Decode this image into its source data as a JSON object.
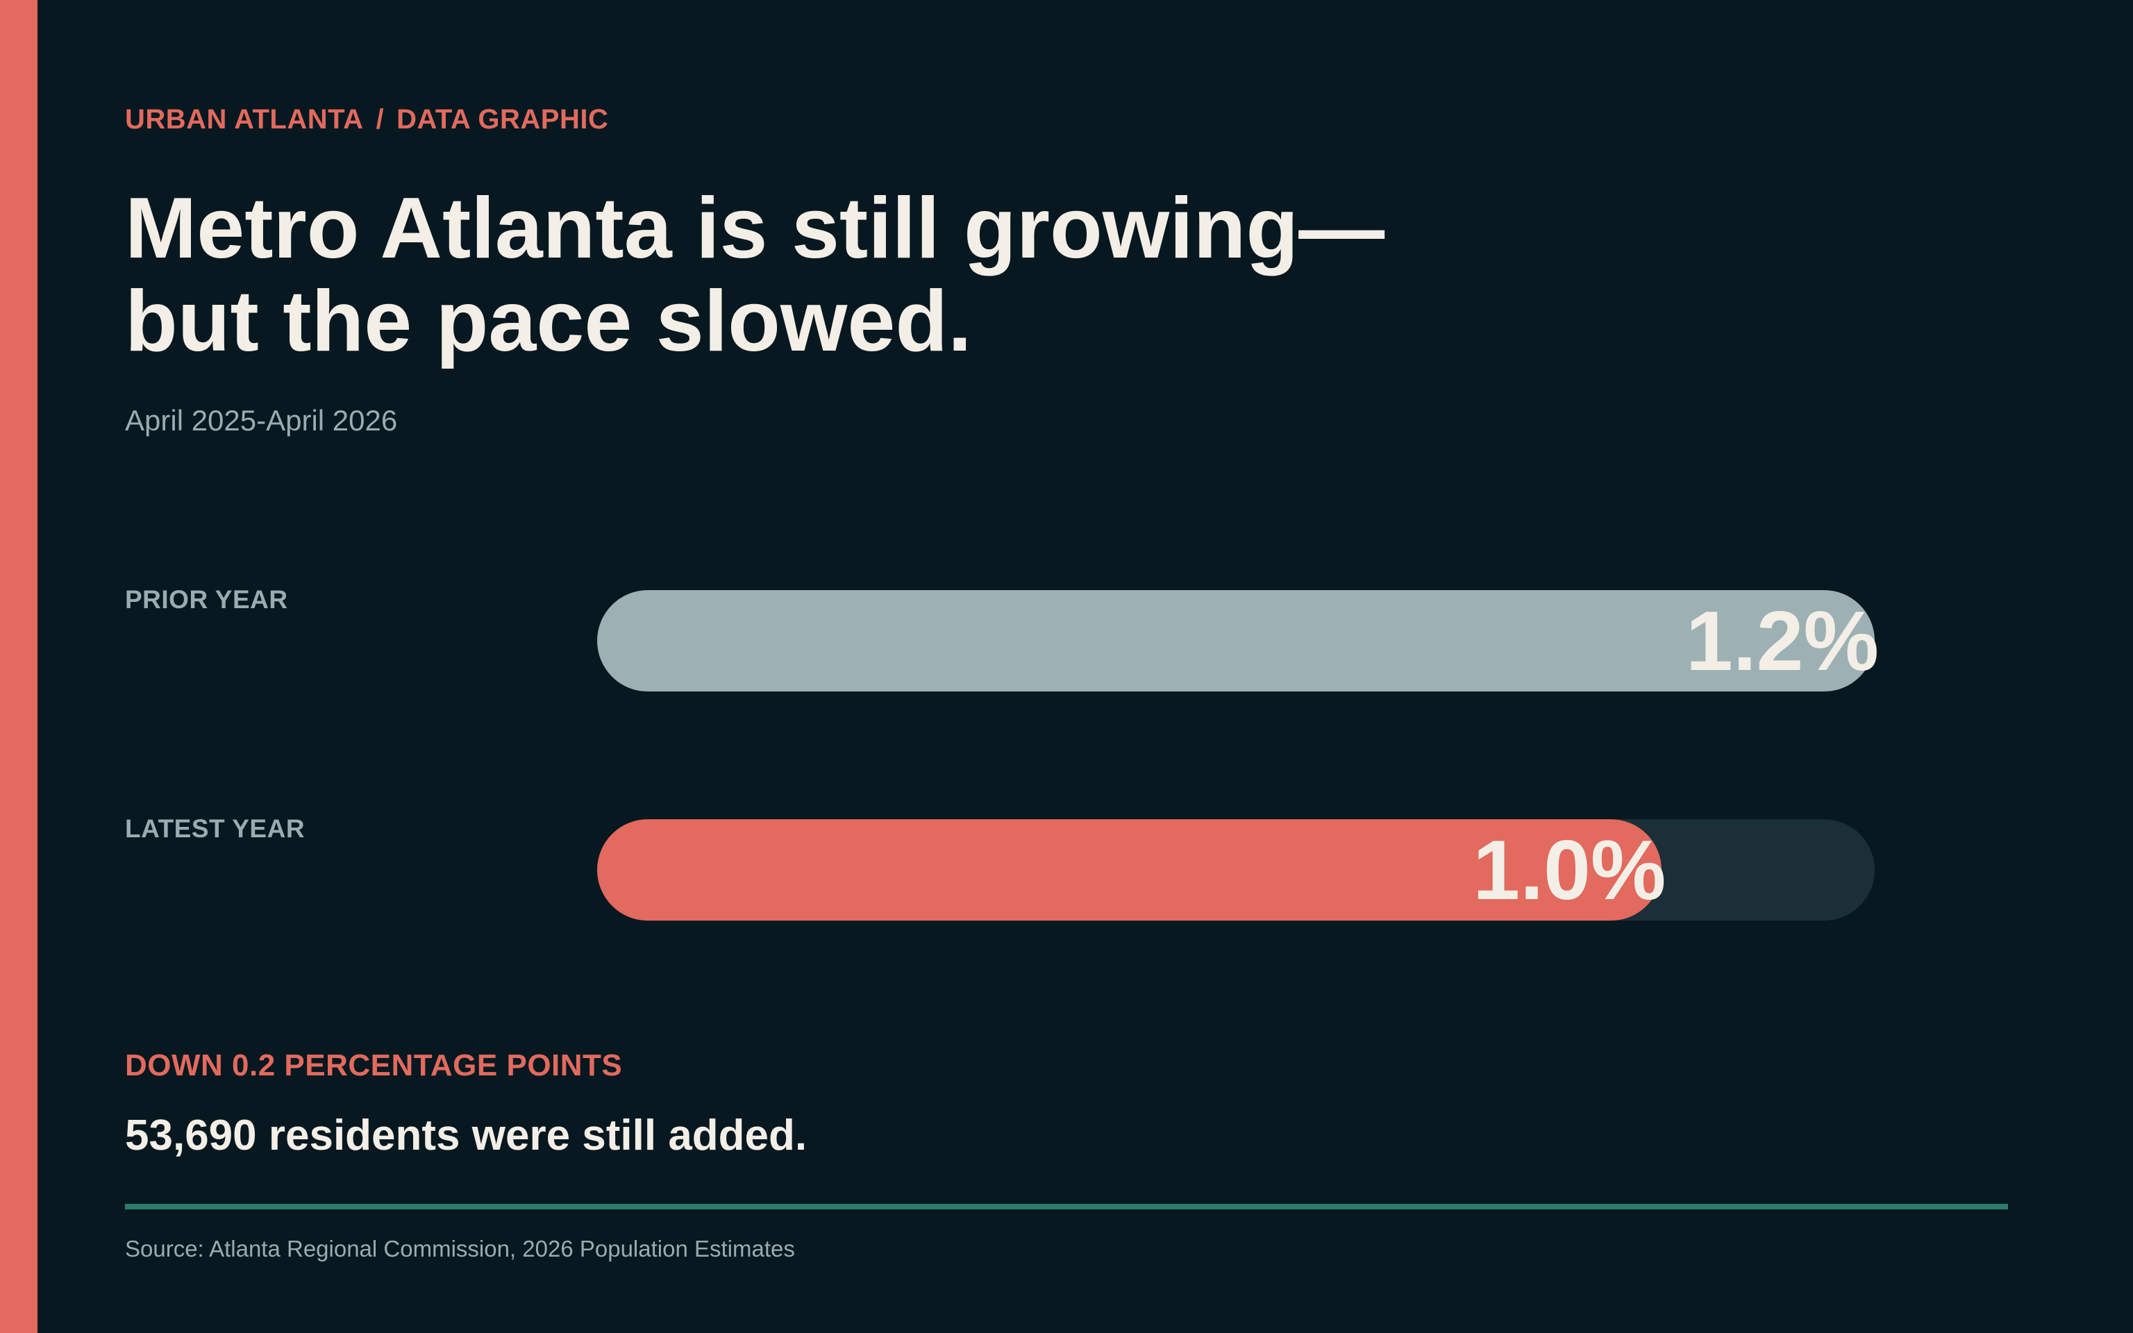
{
  "kicker": {
    "section": "URBAN ATLANTA",
    "separator": "/",
    "type": "DATA GRAPHIC"
  },
  "headline": {
    "line1": "Metro Atlanta is still growing—",
    "line2": "but the pace slowed."
  },
  "subtitle": "April 2025-April 2026",
  "chart_data": {
    "type": "bar",
    "orientation": "horizontal",
    "categories": [
      "PRIOR YEAR",
      "LATEST YEAR"
    ],
    "values": [
      1.2,
      1.0
    ],
    "value_labels": [
      "1.2%",
      "1.0%"
    ],
    "xlim": [
      0,
      1.2
    ],
    "grid": false,
    "colors": [
      "#9db0b4",
      "#e26a5e"
    ],
    "track_color": "#1b2f38"
  },
  "callout": "DOWN 0.2 PERCENTAGE POINTS",
  "takeaway": "53,690 residents were still added.",
  "source": "Source: Atlanta Regional Commission, 2026 Population Estimates",
  "colors": {
    "background": "#081820",
    "accent": "#e26a5e",
    "text": "#f3efe6",
    "muted": "#9aacb2",
    "rule": "#2d7a6a"
  }
}
